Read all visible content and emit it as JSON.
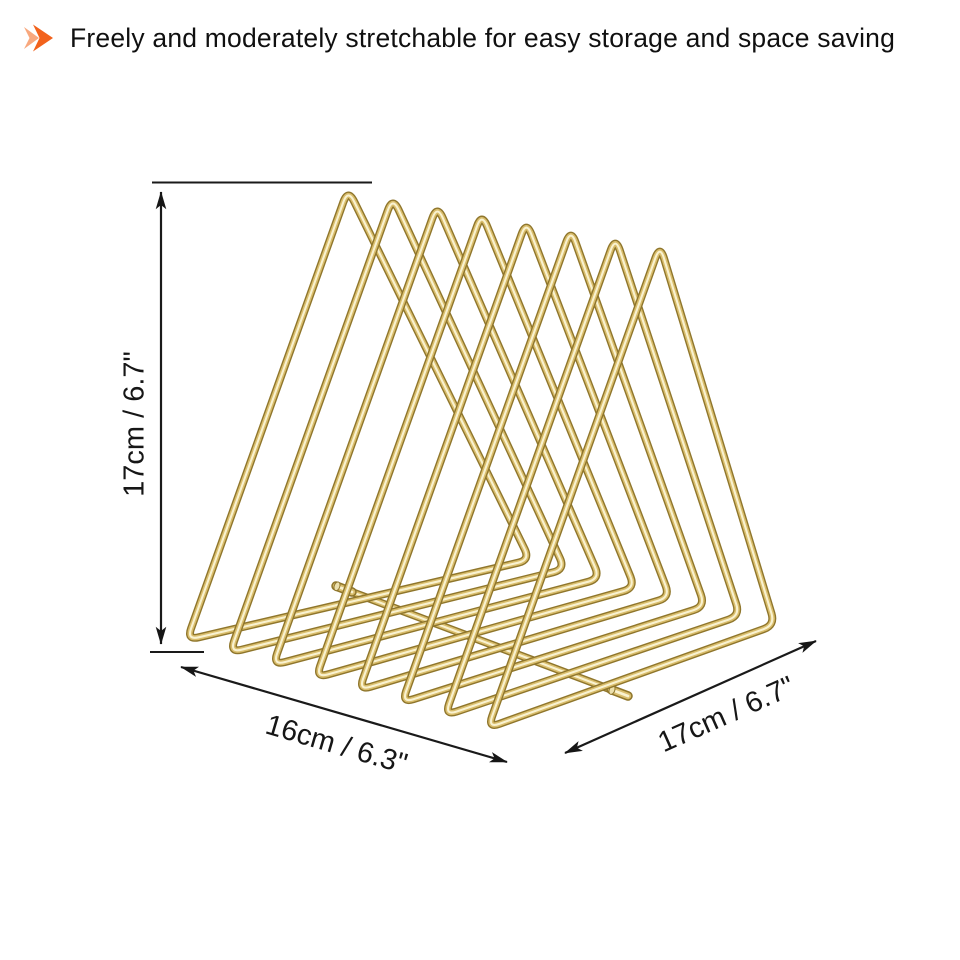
{
  "header": {
    "text": "Freely and moderately stretchable for easy storage and space saving",
    "bullet_icon": {
      "name": "double-arrow-icon",
      "front_color": "#f2621c",
      "back_color": "#f8a87e"
    }
  },
  "figure": {
    "name": "triangle-wire-file-organizer",
    "frame_count": 8,
    "material": {
      "edge_color": "#8f762c",
      "mid_color": "#d9bd6c",
      "core_color": "#f9f2d0",
      "cap_face_color": "#ece0ad"
    },
    "annotation_color": "#161616",
    "dimensions": {
      "height_label": "17cm / 6.7\"",
      "width_label": "16cm / 6.3\"",
      "depth_label": "17cm / 6.7\""
    }
  }
}
